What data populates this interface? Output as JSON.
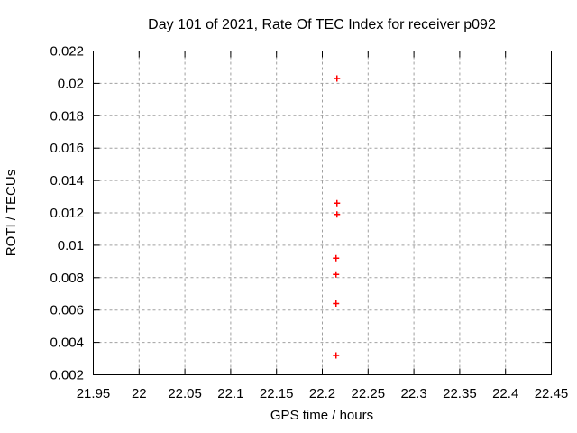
{
  "chart_data": {
    "type": "scatter",
    "title": "Day 101 of 2021, Rate Of TEC Index for receiver p092",
    "xlabel": "GPS time / hours",
    "ylabel": "ROTI / TECUs",
    "xlim": [
      21.95,
      22.45
    ],
    "ylim": [
      0.002,
      0.022
    ],
    "xticks": [
      21.95,
      22.0,
      22.05,
      22.1,
      22.15,
      22.2,
      22.25,
      22.3,
      22.35,
      22.4,
      22.45
    ],
    "xtick_labels": [
      "21.95",
      "22",
      "22.05",
      "22.1",
      "22.15",
      "22.2",
      "22.25",
      "22.3",
      "22.35",
      "22.4",
      "22.45"
    ],
    "yticks": [
      0.002,
      0.004,
      0.006,
      0.008,
      0.01,
      0.012,
      0.014,
      0.016,
      0.018,
      0.02,
      0.022
    ],
    "ytick_labels": [
      "0.002",
      "0.004",
      "0.006",
      "0.008",
      "0.01",
      "0.012",
      "0.014",
      "0.016",
      "0.018",
      "0.02",
      "0.022"
    ],
    "grid": true,
    "legend": "none",
    "marker": "plus",
    "colors": {
      "marker": "#ff0000",
      "grid": "#a0a0a0",
      "border": "#000000",
      "text": "#000000",
      "background": "#ffffff"
    },
    "series": [
      {
        "name": "ROTI",
        "points": [
          [
            22.216,
            0.0203
          ],
          [
            22.216,
            0.0126
          ],
          [
            22.216,
            0.0119
          ],
          [
            22.215,
            0.0092
          ],
          [
            22.215,
            0.0082
          ],
          [
            22.215,
            0.0064
          ],
          [
            22.215,
            0.0032
          ]
        ]
      }
    ]
  }
}
